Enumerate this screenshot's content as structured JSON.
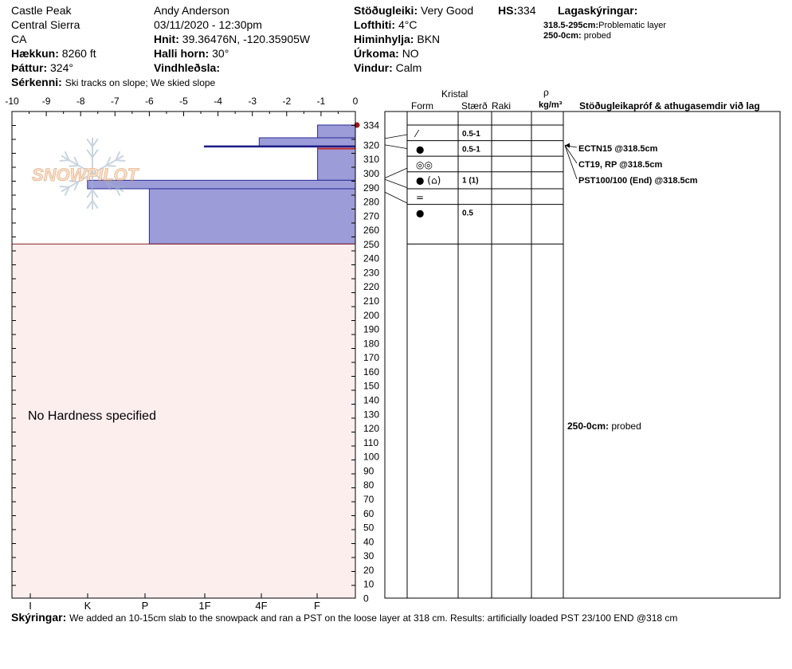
{
  "header": {
    "location": "Castle Peak",
    "range": "Central Sierra",
    "state": "CA",
    "elevation_label": "Hækkun:",
    "elevation": "8260 ft",
    "aspect_label": "Þáttur:",
    "aspect": "324°",
    "features_label": "Sérkenni:",
    "features": "Ski tracks on slope; We skied slope",
    "observer": "Andy Anderson",
    "datetime": "03/11/2020 - 12:30pm",
    "coords_label": "Hnit:",
    "coords": "39.36476N, -120.35905W",
    "slope_label": "Halli horn:",
    "slope": "30°",
    "wind_loading_label": "Vindhleðsla:",
    "stability_label": "Stöðugleiki:",
    "stability": "Very Good",
    "hs_label": "HS:",
    "hs": "334",
    "air_temp_label": "Lofthiti:",
    "air_temp": "4°C",
    "sky_label": "Himinhylja:",
    "sky": "BKN",
    "precip_label": "Úrkoma:",
    "precip": "NO",
    "wind_label": "Vindur:",
    "wind": "Calm",
    "legend_title": "Lagaskýringar:",
    "legend_1_range": "318.5-295cm:",
    "legend_1_text": "Problematic layer",
    "legend_2_range": "250-0cm:",
    "legend_2_text": "probed"
  },
  "table": {
    "kristal": "Kristal",
    "form": "Form",
    "size": "Stærð",
    "wet": "Raki",
    "rho": "ρ",
    "density_unit": "kg/m³",
    "stability_header": "Stöðugleikapróf & athugasemdir við lag",
    "tests": [
      "ECTN15 @318.5cm",
      "CT19, RP @318.5cm",
      "PST100/100 (End) @318.5cm"
    ],
    "probed_range": "250-0cm:",
    "probed_text": "probed"
  },
  "footer": {
    "comments_label": "Skýringar:",
    "comments": "We added an 10-15cm slab to the snowpack and ran a PST on the loose layer at 318 cm. Results: artificially loaded PST 23/100 END @318 cm"
  },
  "no_hardness": "No Hardness specified",
  "watermark": "SNOWPILOT",
  "chart_data": {
    "type": "bar",
    "title": "",
    "x_top_ticks": [
      "-10",
      "-9",
      "-8",
      "-7",
      "-6",
      "-5",
      "-4",
      "-3",
      "-2",
      "-1",
      "0"
    ],
    "x_bottom_ticks": [
      "I",
      "K",
      "P",
      "1F",
      "4F",
      "F"
    ],
    "y_ticks": [
      "334",
      "320",
      "310",
      "300",
      "290",
      "280",
      "270",
      "260",
      "250",
      "240",
      "230",
      "220",
      "210",
      "200",
      "190",
      "180",
      "170",
      "160",
      "150",
      "140",
      "130",
      "120",
      "110",
      "100",
      "90",
      "80",
      "70",
      "60",
      "50",
      "40",
      "30",
      "20",
      "10",
      "0"
    ],
    "ylim": [
      0,
      334
    ],
    "layers": [
      {
        "top": 334,
        "bottom": 325,
        "hardness": -1.1
      },
      {
        "top": 325,
        "bottom": 319,
        "hardness": -2.8
      },
      {
        "top": 319,
        "bottom": 318.5,
        "hardness": -4.4
      },
      {
        "top": 318.5,
        "bottom": 295,
        "hardness": -1.1
      },
      {
        "top": 295,
        "bottom": 289,
        "hardness": -7.8
      },
      {
        "top": 289,
        "bottom": 250,
        "hardness": -6.0
      }
    ],
    "crystal_rows": [
      {
        "top": 334,
        "bottom": 323,
        "form": "⁄",
        "size": "0.5-1"
      },
      {
        "top": 323,
        "bottom": 312,
        "form": "●",
        "size": "0.5-1"
      },
      {
        "top": 312,
        "bottom": 301,
        "form": "◎◎",
        "size": ""
      },
      {
        "top": 301,
        "bottom": 289,
        "form": "● (⌂)",
        "size": "1 (1)"
      },
      {
        "top": 289,
        "bottom": 278,
        "form": "=",
        "size": ""
      },
      {
        "top": 278,
        "bottom": 250,
        "form": "●",
        "size": "0.5"
      }
    ],
    "problem_layer_cm": 318.5
  }
}
